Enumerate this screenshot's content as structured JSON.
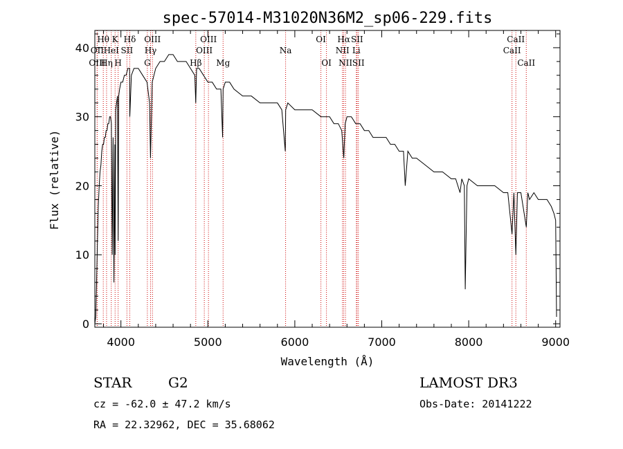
{
  "chart_data": {
    "type": "line",
    "title": "spec-57014-M31020N36M2_sp06-229.fits",
    "xlabel": "Wavelength (Å)",
    "ylabel": "Flux (relative)",
    "xlim": [
      3700,
      9050
    ],
    "ylim": [
      -0.5,
      42.5
    ],
    "x_ticks": [
      4000,
      5000,
      6000,
      7000,
      8000,
      9000
    ],
    "y_ticks": [
      0,
      10,
      20,
      30,
      40
    ],
    "series": [
      {
        "name": "flux",
        "x": [
          3700,
          3710,
          3720,
          3730,
          3740,
          3750,
          3760,
          3770,
          3780,
          3790,
          3800,
          3810,
          3820,
          3830,
          3840,
          3850,
          3860,
          3870,
          3880,
          3890,
          3900,
          3910,
          3920,
          3930,
          3933,
          3940,
          3950,
          3960,
          3968,
          3975,
          3985,
          4000,
          4020,
          4040,
          4060,
          4080,
          4100,
          4102,
          4120,
          4150,
          4200,
          4250,
          4300,
          4330,
          4340,
          4360,
          4400,
          4450,
          4500,
          4550,
          4600,
          4650,
          4700,
          4750,
          4800,
          4850,
          4861,
          4870,
          4900,
          4950,
          5000,
          5050,
          5100,
          5150,
          5170,
          5175,
          5200,
          5250,
          5300,
          5400,
          5500,
          5600,
          5700,
          5800,
          5850,
          5890,
          5895,
          5920,
          6000,
          6100,
          6200,
          6300,
          6400,
          6450,
          6500,
          6540,
          6563,
          6580,
          6600,
          6650,
          6700,
          6750,
          6800,
          6850,
          6900,
          6950,
          7000,
          7050,
          7100,
          7150,
          7200,
          7250,
          7270,
          7300,
          7350,
          7400,
          7500,
          7600,
          7700,
          7800,
          7850,
          7900,
          7920,
          7950,
          7960,
          7980,
          8000,
          8100,
          8200,
          8300,
          8400,
          8450,
          8498,
          8520,
          8542,
          8560,
          8600,
          8662,
          8680,
          8700,
          8750,
          8800,
          8850,
          8900,
          8950,
          8980,
          9000,
          9010
        ],
        "y": [
          0,
          1,
          6,
          12,
          17,
          20,
          22,
          23,
          25,
          26,
          26,
          27,
          27,
          28,
          28,
          29,
          29,
          30,
          30,
          29,
          10,
          27,
          6,
          26,
          10,
          31,
          32,
          33,
          12,
          33,
          34,
          35,
          35,
          36,
          36,
          37,
          37,
          30,
          36,
          37,
          37,
          36,
          35,
          32,
          24,
          35,
          37,
          38,
          38,
          39,
          39,
          38,
          38,
          38,
          37,
          36,
          32,
          37,
          37,
          36,
          35,
          35,
          34,
          34,
          27,
          34,
          35,
          35,
          34,
          33,
          33,
          32,
          32,
          32,
          31,
          25,
          31,
          32,
          31,
          31,
          31,
          30,
          30,
          29,
          29,
          28,
          24,
          29,
          30,
          30,
          29,
          29,
          28,
          28,
          27,
          27,
          27,
          27,
          26,
          26,
          25,
          25,
          20,
          25,
          24,
          24,
          23,
          22,
          22,
          21,
          21,
          19,
          21,
          20,
          5,
          20,
          21,
          20,
          20,
          20,
          19,
          19,
          13,
          19,
          10,
          19,
          19,
          14,
          19,
          18,
          19,
          18,
          18,
          18,
          17,
          16,
          15,
          1
        ]
      }
    ],
    "line_markers": [
      {
        "label": "Hθ",
        "wave": 3797,
        "row": 1
      },
      {
        "label": "OII",
        "wave": 3727,
        "row": 2
      },
      {
        "label": "OIII",
        "wave": 3727,
        "row": 3
      },
      {
        "label": "Hη",
        "wave": 3835,
        "row": 3
      },
      {
        "label": "K",
        "wave": 3933,
        "row": 1
      },
      {
        "label": "HeI",
        "wave": 3889,
        "row": 2
      },
      {
        "label": "SII",
        "wave": 4069,
        "row": 2
      },
      {
        "label": "H",
        "wave": 3968,
        "row": 3
      },
      {
        "label": "Hδ",
        "wave": 4102,
        "row": 1
      },
      {
        "label": "OIII",
        "wave": 4363,
        "row": 1
      },
      {
        "label": "Hγ",
        "wave": 4341,
        "row": 2
      },
      {
        "label": "G",
        "wave": 4304,
        "row": 3
      },
      {
        "label": "Hβ",
        "wave": 4861,
        "row": 3
      },
      {
        "label": "OIII",
        "wave": 5007,
        "row": 1
      },
      {
        "label": "OIII",
        "wave": 4959,
        "row": 2
      },
      {
        "label": "Mg",
        "wave": 5175,
        "row": 3
      },
      {
        "label": "Na",
        "wave": 5894,
        "row": 2
      },
      {
        "label": "OI",
        "wave": 6300,
        "row": 1
      },
      {
        "label": "OI",
        "wave": 6364,
        "row": 3
      },
      {
        "label": "Hα",
        "wave": 6563,
        "row": 1
      },
      {
        "label": "SII",
        "wave": 6716,
        "row": 1
      },
      {
        "label": "NII",
        "wave": 6548,
        "row": 2
      },
      {
        "label": "Li",
        "wave": 6708,
        "row": 2
      },
      {
        "label": "NII",
        "wave": 6583,
        "row": 3
      },
      {
        "label": "SII",
        "wave": 6731,
        "row": 3
      },
      {
        "label": "CaII",
        "wave": 8542,
        "row": 1
      },
      {
        "label": "CaII",
        "wave": 8498,
        "row": 2
      },
      {
        "label": "CaII",
        "wave": 8662,
        "row": 3
      }
    ],
    "colors": {
      "line": "#000000",
      "marker": "#cc0000"
    }
  },
  "info": {
    "class_label": "STAR",
    "subclass": "G2",
    "survey": "LAMOST DR3",
    "cz": "cz = -62.0 ± 47.2 km/s",
    "obs_date": "Obs-Date: 20141222",
    "radec": "RA =  22.32962, DEC =  35.68062"
  }
}
